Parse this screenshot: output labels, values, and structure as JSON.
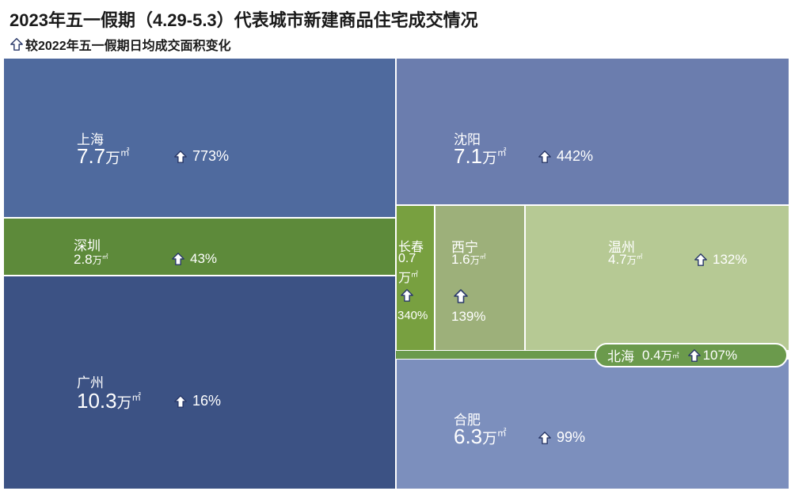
{
  "title": "2023年五一假期（4.29-5.3）代表城市新建商品住宅成交情况",
  "subtitle": "较2022年五一假期日均成交面积变化",
  "unit_text": "万",
  "unit_sup": "㎡",
  "colors": {
    "shanghai": "#4f6a9e",
    "guangzhou": "#3c5284",
    "shenzhen": "#5d8a3a",
    "shenyang": "#6b7dae",
    "hefei": "#7c8fbd",
    "changchun": "#78a040",
    "xining": "#9db07a",
    "wenzhou": "#b6c994",
    "beihai": "#6b9a4c",
    "arrow_fill": "#ffffff",
    "arrow_stroke": "#2b3a6a"
  },
  "chart_data": {
    "type": "treemap",
    "title": "2023年五一假期（4.29-5.3）代表城市新建商品住宅成交情况",
    "subtitle": "较2022年五一假期日均成交面积变化",
    "items": [
      {
        "key": "shanghai",
        "city": "上海",
        "area": "7.7",
        "change": "773%"
      },
      {
        "key": "shenzhen",
        "city": "深圳",
        "area": "2.8",
        "change": "43%"
      },
      {
        "key": "guangzhou",
        "city": "广州",
        "area": "10.3",
        "change": "16%"
      },
      {
        "key": "shenyang",
        "city": "沈阳",
        "area": "7.1",
        "change": "442%"
      },
      {
        "key": "changchun",
        "city": "长春",
        "area": "0.7",
        "change": "340%"
      },
      {
        "key": "xining",
        "city": "西宁",
        "area": "1.6",
        "change": "139%"
      },
      {
        "key": "wenzhou",
        "city": "温州",
        "area": "4.7",
        "change": "132%"
      },
      {
        "key": "beihai",
        "city": "北海",
        "area": "0.4",
        "change": "107%"
      },
      {
        "key": "hefei",
        "city": "合肥",
        "area": "6.3",
        "change": "99%"
      }
    ]
  }
}
